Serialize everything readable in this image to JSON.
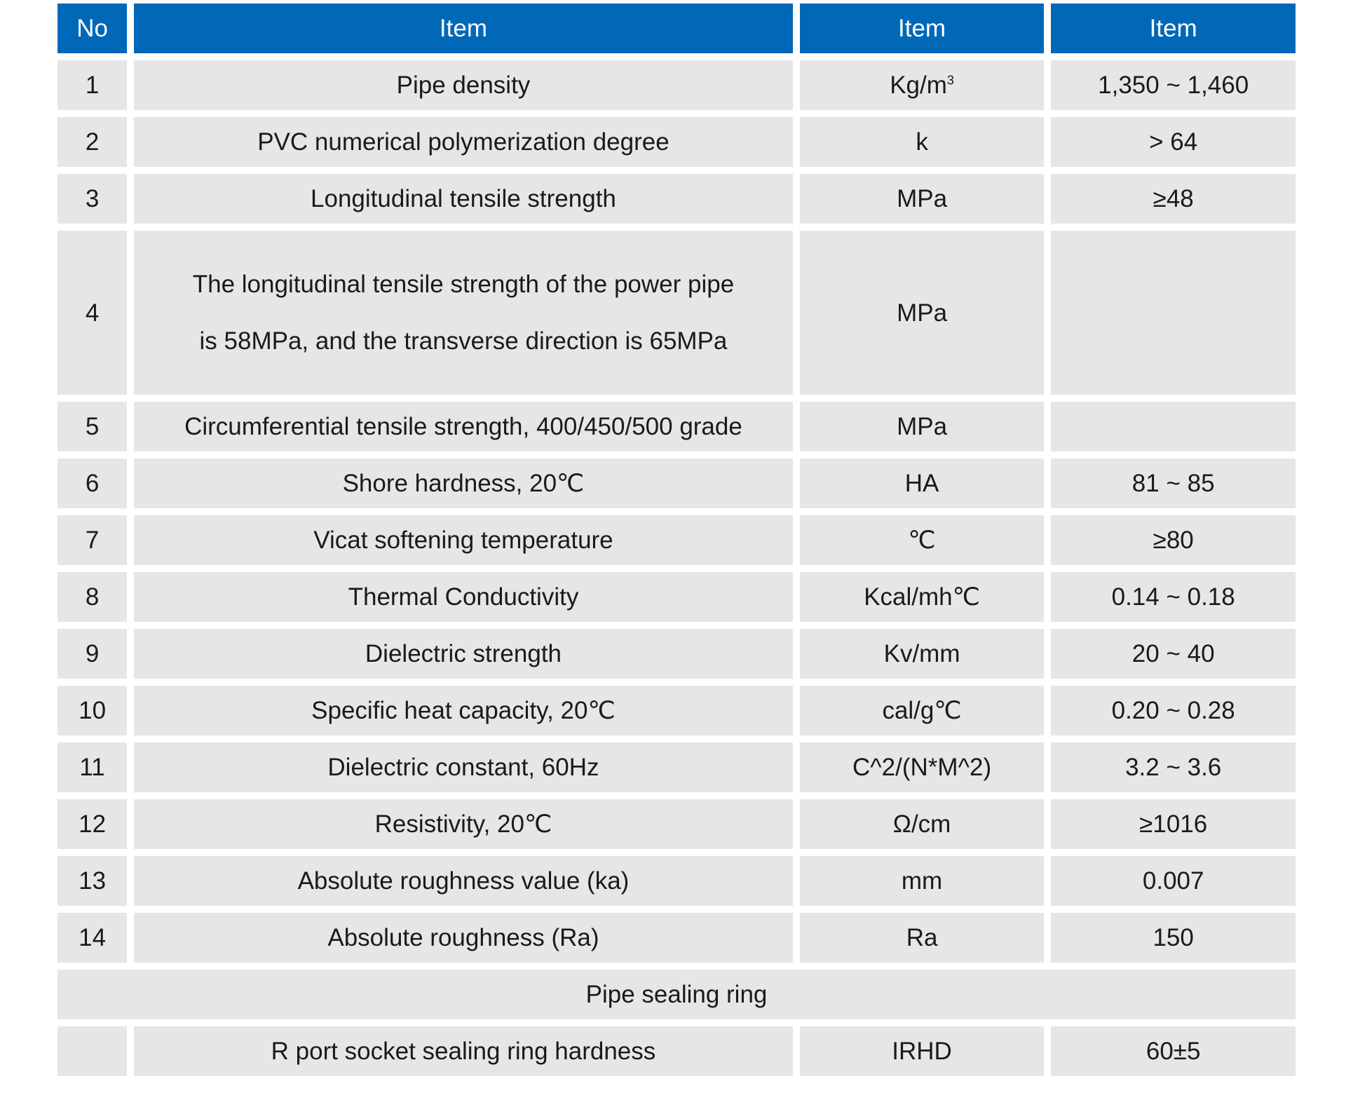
{
  "header": {
    "no": "No",
    "item": "Item",
    "unit": "Item",
    "value": "Item"
  },
  "rows": [
    {
      "no": "1",
      "item": "Pipe density",
      "unit_base": "Kg/m",
      "unit_sup": "3",
      "value": "1,350 ~ 1,460"
    },
    {
      "no": "2",
      "item": "PVC numerical polymerization degree",
      "unit": "k",
      "value": "> 64"
    },
    {
      "no": "3",
      "item": "Longitudinal tensile strength",
      "unit": "MPa",
      "value": "≥48"
    },
    {
      "no": "4",
      "item_line1": "The longitudinal tensile strength of the power pipe",
      "item_line2": "is 58MPa, and the transverse direction is 65MPa",
      "unit": "MPa",
      "value": ""
    },
    {
      "no": "5",
      "item": "Circumferential tensile strength, 400/450/500 grade",
      "unit": "MPa",
      "value": ""
    },
    {
      "no": "6",
      "item": "Shore hardness, 20℃",
      "unit": "HA",
      "value": "81 ~ 85"
    },
    {
      "no": "7",
      "item": "Vicat softening temperature",
      "unit": "℃",
      "value": "≥80"
    },
    {
      "no": "8",
      "item": "Thermal Conductivity",
      "unit": "Kcal/mh℃",
      "value": "0.14 ~ 0.18"
    },
    {
      "no": "9",
      "item": "Dielectric strength",
      "unit": "Kv/mm",
      "value": "20 ~ 40"
    },
    {
      "no": "10",
      "item": "Specific heat capacity, 20℃",
      "unit": "cal/g℃",
      "value": "0.20 ~ 0.28"
    },
    {
      "no": "11",
      "item": "Dielectric constant, 60Hz",
      "unit": "C^2/(N*M^2)",
      "value": "3.2 ~ 3.6"
    },
    {
      "no": "12",
      "item": "Resistivity, 20℃",
      "unit": "Ω/cm",
      "value": "≥1016"
    },
    {
      "no": "13",
      "item": "Absolute roughness value (ka)",
      "unit": "mm",
      "value": "0.007"
    },
    {
      "no": "14",
      "item": "Absolute roughness (Ra)",
      "unit": "Ra",
      "value": "150"
    }
  ],
  "section": {
    "title": "Pipe sealing ring"
  },
  "sealing_row": {
    "no": "",
    "item": "R port socket sealing ring hardness",
    "unit": "IRHD",
    "value": "60±5"
  },
  "colors": {
    "header_bg": "#0068b7",
    "cell_bg": "#e6e6e6",
    "text": "#1a1a1a"
  }
}
